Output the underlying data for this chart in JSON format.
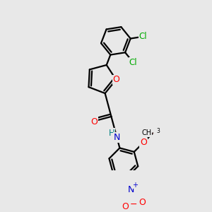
{
  "bg_color": "#e8e8e8",
  "bond_color": "#000000",
  "bond_width": 1.6,
  "figsize": [
    3.0,
    3.0
  ],
  "dpi": 100,
  "atom_colors": {
    "O": "#ff0000",
    "N_blue": "#0000cc",
    "N_teal": "#008080",
    "Cl": "#00aa00",
    "C": "#000000"
  },
  "xlim": [
    -2.8,
    3.2
  ],
  "ylim": [
    -3.8,
    3.2
  ]
}
